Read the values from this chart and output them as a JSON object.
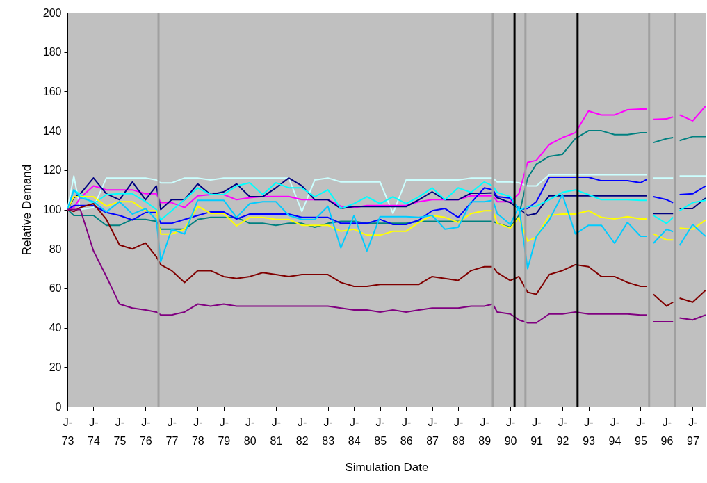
{
  "chart_data": {
    "type": "line",
    "xlabel": "Simulation Date",
    "ylabel": "Relative Demand",
    "x": [
      "1973-01",
      "1973-04",
      "1973-07",
      "1974-01",
      "1974-07",
      "1975-01",
      "1975-07",
      "1976-01",
      "1976-06",
      "1976-08",
      "1977-01",
      "1977-07",
      "1978-01",
      "1978-07",
      "1979-01",
      "1979-07",
      "1980-01",
      "1980-07",
      "1981-01",
      "1981-07",
      "1982-01",
      "1982-07",
      "1983-01",
      "1983-07",
      "1984-01",
      "1984-07",
      "1985-01",
      "1985-07",
      "1986-01",
      "1986-07",
      "1987-01",
      "1987-07",
      "1988-01",
      "1988-07",
      "1989-01",
      "1989-05",
      "1989-07",
      "1990-01",
      "1990-05",
      "1990-09",
      "1991-01",
      "1991-07",
      "1992-01",
      "1992-07",
      "1993-01",
      "1993-07",
      "1994-01",
      "1994-07",
      "1995-01",
      "1995-04",
      "1995-05",
      "1995-07",
      "1996-01",
      "1996-04",
      "1996-05",
      "1996-07",
      "1997-01",
      "1997-07"
    ],
    "xlim": [
      "1973-01",
      "1997-07"
    ],
    "xticks": [
      {
        "value": "1973-01",
        "label": "J-\n73"
      },
      {
        "value": "1974-01",
        "label": "J-\n74"
      },
      {
        "value": "1975-01",
        "label": "J-\n75"
      },
      {
        "value": "1976-01",
        "label": "J-\n76"
      },
      {
        "value": "1977-01",
        "label": "J-\n77"
      },
      {
        "value": "1978-01",
        "label": "J-\n78"
      },
      {
        "value": "1979-01",
        "label": "J-\n79"
      },
      {
        "value": "1980-01",
        "label": "J-\n80"
      },
      {
        "value": "1981-01",
        "label": "J-\n81"
      },
      {
        "value": "1982-01",
        "label": "J-\n82"
      },
      {
        "value": "1983-01",
        "label": "J-\n83"
      },
      {
        "value": "1984-01",
        "label": "J-\n84"
      },
      {
        "value": "1985-01",
        "label": "J-\n85"
      },
      {
        "value": "1986-01",
        "label": "J-\n86"
      },
      {
        "value": "1987-01",
        "label": "J-\n87"
      },
      {
        "value": "1988-01",
        "label": "J-\n88"
      },
      {
        "value": "1989-01",
        "label": "J-\n89"
      },
      {
        "value": "1990-01",
        "label": "J-\n90"
      },
      {
        "value": "1991-01",
        "label": "J-\n91"
      },
      {
        "value": "1992-01",
        "label": "J-\n92"
      },
      {
        "value": "1993-01",
        "label": "J-\n93"
      },
      {
        "value": "1994-01",
        "label": "J-\n94"
      },
      {
        "value": "1995-01",
        "label": "J-\n95"
      },
      {
        "value": "1996-01",
        "label": "J-\n96"
      },
      {
        "value": "1997-01",
        "label": "J-\n97"
      }
    ],
    "ylim": [
      0,
      200
    ],
    "yticks": [
      0,
      20,
      40,
      60,
      80,
      100,
      120,
      140,
      160,
      180,
      200
    ],
    "series": [
      {
        "color": "#ccffff",
        "values": [
          100,
          117,
          100,
          101,
          116,
          116,
          116,
          116,
          115,
          113.5,
          113.5,
          116,
          116,
          115,
          116,
          116,
          116,
          116,
          116,
          116,
          99,
          115,
          116,
          114,
          114,
          114,
          114,
          98,
          115,
          115,
          115,
          115,
          115,
          116,
          116,
          116,
          114,
          114,
          113.6,
          112,
          112,
          117.6,
          117.6,
          117.6,
          117.6,
          117.6,
          117.6,
          117.6,
          117.6,
          117.6,
          null,
          116,
          116,
          116,
          null,
          117,
          117,
          117
        ]
      },
      {
        "color": "#008080",
        "values": [
          100,
          97,
          97,
          97,
          92,
          92,
          95,
          95,
          94,
          90,
          90,
          90,
          95,
          96,
          96,
          96,
          93,
          93,
          92,
          93,
          93,
          91,
          93,
          94,
          94,
          93,
          93,
          93,
          93,
          94,
          94,
          94,
          94,
          94,
          94,
          94,
          93,
          91,
          97,
          116,
          123,
          127,
          128,
          136,
          140,
          140,
          138,
          138,
          139,
          139,
          null,
          134,
          136,
          136.5,
          null,
          135,
          137,
          137
        ]
      },
      {
        "color": "#ff00ff",
        "values": [
          100,
          101,
          106,
          112,
          110,
          110,
          110,
          108,
          108,
          103.5,
          103.5,
          101,
          107,
          107.6,
          107.6,
          105,
          106,
          106.6,
          106.6,
          106.6,
          105,
          105,
          105,
          101.7,
          101,
          102,
          102,
          102,
          102,
          104,
          105,
          105,
          105,
          107,
          107,
          107,
          104,
          104,
          108,
          124,
          125,
          133,
          136.5,
          139,
          150,
          148,
          148,
          150.6,
          151,
          151,
          null,
          145.8,
          146,
          147,
          null,
          148,
          145,
          152.5
        ]
      },
      {
        "color": "#000080",
        "values": [
          100,
          106,
          108,
          116,
          108,
          105,
          114,
          105,
          112,
          100,
          105,
          105,
          113,
          107.6,
          109,
          113,
          106.5,
          106.5,
          111,
          116,
          112,
          105,
          105,
          100.5,
          101.5,
          101.5,
          101.5,
          101.5,
          101.5,
          105,
          109,
          105,
          105,
          108.3,
          108.3,
          108.5,
          106,
          103.5,
          100.5,
          97,
          98,
          107,
          107,
          107,
          107,
          107,
          107,
          107,
          107,
          107,
          null,
          98,
          98,
          98,
          null,
          100.5,
          100.5,
          105.8
        ]
      },
      {
        "color": "#0000ff",
        "values": [
          100,
          102,
          102,
          102,
          98.5,
          97,
          94.7,
          98.5,
          98.5,
          93,
          93,
          95,
          97,
          98.8,
          98.8,
          95.2,
          97.7,
          97.7,
          97.7,
          97.7,
          96,
          96,
          96,
          93,
          93,
          93,
          95,
          92.4,
          92.4,
          94.7,
          99.4,
          100.5,
          96,
          103.5,
          111,
          110,
          106.5,
          105.8,
          100,
          100.5,
          104,
          116.4,
          116.4,
          116.4,
          116.4,
          114.6,
          114.6,
          114.6,
          113.6,
          115.3,
          null,
          106.5,
          105,
          103.5,
          null,
          107.6,
          108,
          112
        ]
      },
      {
        "color": "#00ffff",
        "values": [
          100,
          110,
          107.6,
          103,
          107.6,
          108,
          108,
          104,
          100,
          94.7,
          99.4,
          105,
          111,
          107.6,
          107.6,
          112,
          113.6,
          107.6,
          113.6,
          111,
          111,
          106.5,
          110,
          100.5,
          103,
          106.5,
          103,
          106.5,
          103,
          106.5,
          111,
          105,
          111,
          108.7,
          114,
          112,
          108.7,
          106.5,
          99.4,
          101.7,
          101.7,
          105,
          108.7,
          110,
          107.6,
          105,
          105,
          105,
          104.7,
          104.7,
          null,
          97,
          92.9,
          96,
          null,
          99.4,
          103.5,
          104.7
        ]
      },
      {
        "color": "#ffff00",
        "values": [
          100,
          106.5,
          106.5,
          106.5,
          101.7,
          104,
          104,
          99.4,
          99.4,
          87.6,
          87.6,
          90,
          101.7,
          98,
          98,
          91.7,
          96,
          96,
          95,
          95,
          92,
          92,
          92,
          89,
          90,
          87,
          87,
          89,
          89,
          93.5,
          97,
          96,
          93.5,
          98,
          99.4,
          99.4,
          93,
          90.6,
          96,
          84,
          86,
          97,
          97.7,
          97.7,
          99.4,
          96,
          95.2,
          96.4,
          95.2,
          95.2,
          null,
          87.6,
          84.6,
          84.6,
          null,
          90.6,
          90,
          94.7
        ]
      },
      {
        "color": "#00ccff",
        "values": [
          100,
          110,
          106,
          104,
          98.8,
          104,
          97.7,
          100.5,
          94.7,
          73.5,
          90,
          87.6,
          104.7,
          104.7,
          104.7,
          96,
          103,
          104,
          104,
          97,
          95,
          95,
          101.7,
          80.5,
          97,
          79,
          96.4,
          96.4,
          96.4,
          96,
          97,
          90,
          91,
          104,
          104,
          104.7,
          98,
          92.4,
          101.7,
          70,
          86.4,
          94.7,
          107.6,
          87.6,
          92,
          92,
          82.9,
          93.5,
          86.4,
          86.4,
          null,
          82.9,
          90,
          88.8,
          null,
          81.8,
          92.4,
          86.4
        ]
      },
      {
        "color": "#800000",
        "values": [
          100,
          99,
          101,
          103,
          95,
          82,
          80,
          83,
          76,
          72,
          69,
          63,
          69,
          69,
          66,
          65,
          66,
          68,
          67,
          66,
          67,
          67,
          67,
          63,
          61,
          61,
          62,
          62,
          62,
          62,
          66,
          65,
          64,
          69,
          71,
          71,
          68,
          64,
          66,
          58,
          57,
          67,
          69,
          72,
          71,
          66,
          66,
          63,
          61,
          61,
          null,
          57,
          51,
          53,
          null,
          55,
          53,
          59
        ]
      },
      {
        "color": "#800080",
        "values": [
          100,
          100,
          100,
          79,
          66,
          52,
          50,
          49,
          48,
          46.5,
          46.5,
          48,
          52,
          51,
          52,
          51,
          51,
          51,
          51,
          51,
          51,
          51,
          51,
          50,
          49,
          49,
          48,
          49,
          48,
          49,
          50,
          50,
          50,
          51,
          51,
          52,
          48,
          47,
          44,
          42.5,
          42.5,
          47,
          47,
          48,
          47,
          47,
          47,
          47,
          46.5,
          46.5,
          null,
          43,
          43,
          43,
          null,
          45,
          44,
          46.5
        ]
      }
    ],
    "ref_lines": [
      {
        "axis": "x",
        "value": "1976-07",
        "color": "#a0a0a0"
      },
      {
        "axis": "x",
        "value": "1989-05",
        "color": "#a0a0a0"
      },
      {
        "axis": "x",
        "value": "1990-03",
        "color": "#000000"
      },
      {
        "axis": "x",
        "value": "1990-08",
        "color": "#a0a0a0"
      },
      {
        "axis": "x",
        "value": "1992-08",
        "color": "#000000"
      },
      {
        "axis": "x",
        "value": "1995-05",
        "color": "#a0a0a0"
      },
      {
        "axis": "x",
        "value": "1996-05",
        "color": "#a0a0a0"
      }
    ]
  }
}
